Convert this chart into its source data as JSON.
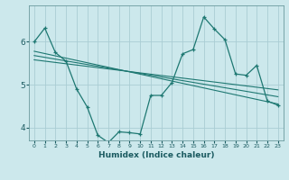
{
  "xlabel": "Humidex (Indice chaleur)",
  "ylabel": "",
  "bg_color": "#cce8ec",
  "grid_color": "#aacdd4",
  "line_color": "#1e7872",
  "xlim": [
    -0.5,
    23.5
  ],
  "ylim": [
    3.7,
    6.85
  ],
  "yticks": [
    4,
    5,
    6
  ],
  "xticks": [
    0,
    1,
    2,
    3,
    4,
    5,
    6,
    7,
    8,
    9,
    10,
    11,
    12,
    13,
    14,
    15,
    16,
    17,
    18,
    19,
    20,
    21,
    22,
    23
  ],
  "series": [
    {
      "x": [
        0,
        1,
        2,
        3,
        4,
        5,
        6,
        7,
        8,
        9,
        10,
        11,
        12,
        13,
        14,
        15,
        16,
        17,
        18,
        19,
        20,
        21,
        22,
        23
      ],
      "y": [
        6.0,
        6.32,
        5.75,
        5.55,
        4.9,
        4.48,
        3.82,
        3.65,
        3.9,
        3.88,
        3.85,
        4.75,
        4.75,
        5.05,
        5.72,
        5.82,
        6.58,
        6.3,
        6.05,
        5.25,
        5.22,
        5.45,
        4.62,
        4.52
      ],
      "marker": true
    },
    {
      "x": [
        0,
        23
      ],
      "y": [
        5.78,
        4.55
      ],
      "marker": false
    },
    {
      "x": [
        0,
        23
      ],
      "y": [
        5.68,
        4.72
      ],
      "marker": false
    },
    {
      "x": [
        0,
        23
      ],
      "y": [
        5.58,
        4.88
      ],
      "marker": false
    }
  ]
}
